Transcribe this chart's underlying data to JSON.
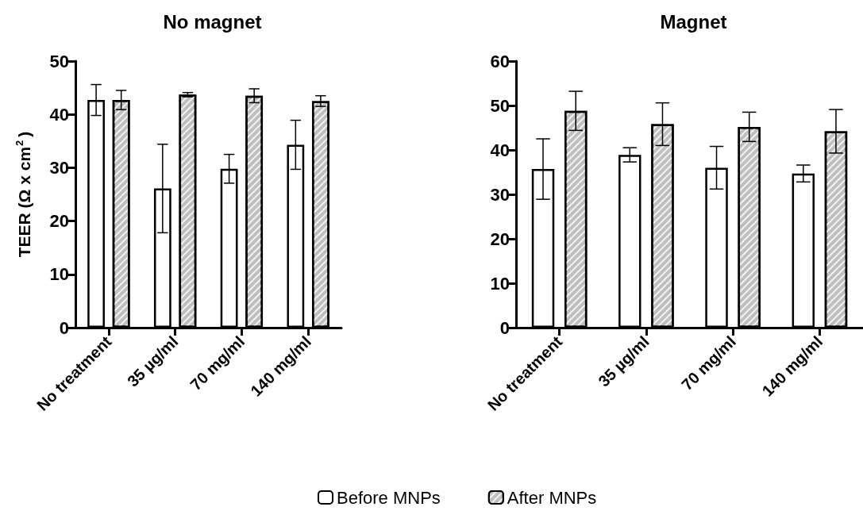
{
  "chart_data": [
    {
      "type": "bar",
      "title": "No magnet",
      "ylabel": "TEER (Ω x cm$^{2}$)",
      "categories": [
        "No treatment",
        "35 µg/ml",
        "70 mg/ml",
        "140 mg/ml"
      ],
      "ylim": [
        0,
        50
      ],
      "yticks": [
        0,
        10,
        20,
        30,
        40,
        50
      ],
      "grid": false,
      "legend": "bottom",
      "series": [
        {
          "name": "Before MNPs",
          "color": "#ffffff",
          "values": [
            42.7,
            26.1,
            29.8,
            34.3
          ],
          "errors": [
            2.9,
            8.3,
            2.7,
            4.6
          ]
        },
        {
          "name": "After MNPs",
          "color": "#bfbfbf",
          "values": [
            42.7,
            43.7,
            43.5,
            42.5
          ],
          "errors": [
            1.8,
            0.4,
            1.3,
            1.0
          ]
        }
      ]
    },
    {
      "type": "bar",
      "title": "Magnet",
      "categories": [
        "No treatment",
        "35 µg/ml",
        "70 mg/ml",
        "140 mg/ml"
      ],
      "ylim": [
        0,
        60
      ],
      "yticks": [
        0,
        10,
        20,
        30,
        40,
        50,
        60
      ],
      "grid": false,
      "series": [
        {
          "color": "#ffffff",
          "values": [
            35.7,
            38.9,
            36.0,
            34.7
          ],
          "errors": [
            6.8,
            1.6,
            4.8,
            1.9
          ]
        },
        {
          "color": "#bfbfbf",
          "values": [
            48.8,
            45.8,
            45.2,
            44.2
          ],
          "errors": [
            4.4,
            4.8,
            3.3,
            4.9
          ]
        }
      ]
    }
  ]
}
